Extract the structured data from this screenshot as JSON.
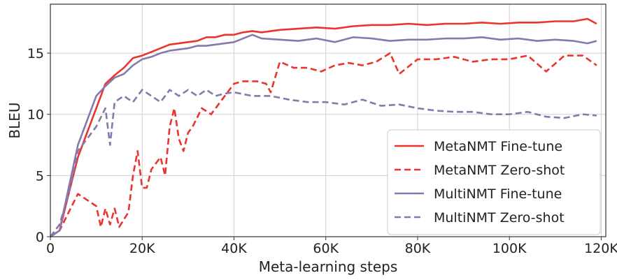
{
  "chart_data": {
    "type": "line",
    "title": "",
    "xlabel": "Meta-learning steps",
    "ylabel": "BLEU",
    "xlim": [
      0,
      121000
    ],
    "ylim": [
      0,
      19
    ],
    "xticks": [
      0,
      20000,
      40000,
      60000,
      80000,
      100000,
      120000
    ],
    "xtick_labels": [
      "0",
      "20K",
      "40K",
      "60K",
      "80K",
      "100K",
      "120K"
    ],
    "yticks": [
      0,
      5,
      10,
      15
    ],
    "ytick_labels": [
      "0",
      "5",
      "10",
      "15"
    ],
    "grid": true,
    "legend_position": "lower-right",
    "series": [
      {
        "name": "MetaNMT Fine-tune",
        "color": "#e8352e",
        "style": "solid",
        "x": [
          0,
          2000,
          4000,
          6000,
          8000,
          10000,
          12000,
          14000,
          16000,
          18000,
          20000,
          22000,
          24000,
          26000,
          28000,
          30000,
          32000,
          34000,
          36000,
          38000,
          40000,
          42000,
          44000,
          46000,
          48000,
          50000,
          54000,
          58000,
          62000,
          66000,
          70000,
          74000,
          78000,
          82000,
          86000,
          90000,
          94000,
          98000,
          102000,
          106000,
          110000,
          114000,
          117000,
          119000
        ],
        "y": [
          0,
          0.5,
          3.5,
          6.5,
          8.5,
          10.5,
          12.5,
          13.2,
          13.8,
          14.6,
          14.8,
          15.1,
          15.4,
          15.7,
          15.8,
          15.9,
          16.0,
          16.3,
          16.3,
          16.5,
          16.5,
          16.7,
          16.8,
          16.7,
          16.8,
          16.9,
          17.0,
          17.1,
          17.0,
          17.2,
          17.3,
          17.3,
          17.4,
          17.3,
          17.4,
          17.4,
          17.5,
          17.4,
          17.5,
          17.5,
          17.6,
          17.6,
          17.8,
          17.4
        ]
      },
      {
        "name": "MetaNMT Zero-shot",
        "color": "#e8352e",
        "style": "dashed",
        "x": [
          0,
          2000,
          4000,
          6000,
          8000,
          10000,
          11000,
          12000,
          13000,
          14000,
          15000,
          17000,
          18000,
          19000,
          20000,
          21000,
          22000,
          24000,
          25000,
          26000,
          27000,
          28000,
          29000,
          30000,
          31000,
          33000,
          35000,
          37000,
          40000,
          42000,
          45000,
          47000,
          48000,
          50000,
          53000,
          56000,
          59000,
          62000,
          65000,
          68000,
          71000,
          74000,
          76000,
          80000,
          84000,
          88000,
          92000,
          96000,
          100000,
          104000,
          108000,
          112000,
          116000,
          119000
        ],
        "y": [
          0,
          0.5,
          2.0,
          3.5,
          3.0,
          2.5,
          0.8,
          2.3,
          1.0,
          2.3,
          0.8,
          2.0,
          5.0,
          7.0,
          4.0,
          4.0,
          5.5,
          6.5,
          5.0,
          9.0,
          10.5,
          8.0,
          7.0,
          8.5,
          9.0,
          10.5,
          10.0,
          11.0,
          12.5,
          12.7,
          12.7,
          12.5,
          11.8,
          14.3,
          13.8,
          13.8,
          13.5,
          14.0,
          14.2,
          14.0,
          14.3,
          15.0,
          13.3,
          14.5,
          14.5,
          14.7,
          14.3,
          14.5,
          14.5,
          14.8,
          13.5,
          14.8,
          14.8,
          14.0
        ]
      },
      {
        "name": "MultiNMT Fine-tune",
        "color": "#8878ac",
        "style": "solid",
        "x": [
          0,
          2000,
          4000,
          6000,
          8000,
          10000,
          12000,
          14000,
          16000,
          18000,
          20000,
          22000,
          24000,
          26000,
          28000,
          30000,
          32000,
          34000,
          36000,
          38000,
          40000,
          42000,
          44000,
          46000,
          50000,
          54000,
          58000,
          62000,
          66000,
          70000,
          74000,
          78000,
          82000,
          86000,
          90000,
          94000,
          98000,
          102000,
          106000,
          110000,
          114000,
          117000,
          119000
        ],
        "y": [
          0,
          0.5,
          4.0,
          7.5,
          9.5,
          11.5,
          12.3,
          13.0,
          13.3,
          14.0,
          14.5,
          14.7,
          15.0,
          15.2,
          15.3,
          15.4,
          15.6,
          15.6,
          15.7,
          15.8,
          15.9,
          16.2,
          16.5,
          16.2,
          16.1,
          16.0,
          16.2,
          15.9,
          16.3,
          16.2,
          16.0,
          16.1,
          16.1,
          16.2,
          16.2,
          16.3,
          16.1,
          16.2,
          16.0,
          16.1,
          16.0,
          15.8,
          16.0
        ]
      },
      {
        "name": "MultiNMT Zero-shot",
        "color": "#8878ac",
        "style": "dashed",
        "x": [
          0,
          2000,
          4000,
          6000,
          8000,
          10000,
          12000,
          13000,
          14000,
          16000,
          18000,
          20000,
          22000,
          24000,
          26000,
          28000,
          30000,
          32000,
          34000,
          36000,
          38000,
          40000,
          44000,
          48000,
          52000,
          56000,
          60000,
          64000,
          68000,
          72000,
          76000,
          80000,
          84000,
          88000,
          92000,
          96000,
          100000,
          104000,
          108000,
          112000,
          116000,
          119000
        ],
        "y": [
          0,
          1.0,
          3.5,
          7.0,
          8.0,
          9.0,
          10.5,
          7.5,
          11.0,
          11.5,
          11.0,
          12.0,
          11.5,
          11.0,
          12.0,
          11.5,
          12.0,
          11.5,
          12.0,
          11.5,
          11.7,
          11.8,
          11.5,
          11.5,
          11.2,
          11.0,
          11.0,
          10.8,
          11.2,
          10.7,
          10.8,
          10.5,
          10.3,
          10.2,
          10.2,
          10.0,
          10.0,
          10.2,
          9.8,
          9.7,
          10.0,
          9.9
        ]
      }
    ]
  }
}
